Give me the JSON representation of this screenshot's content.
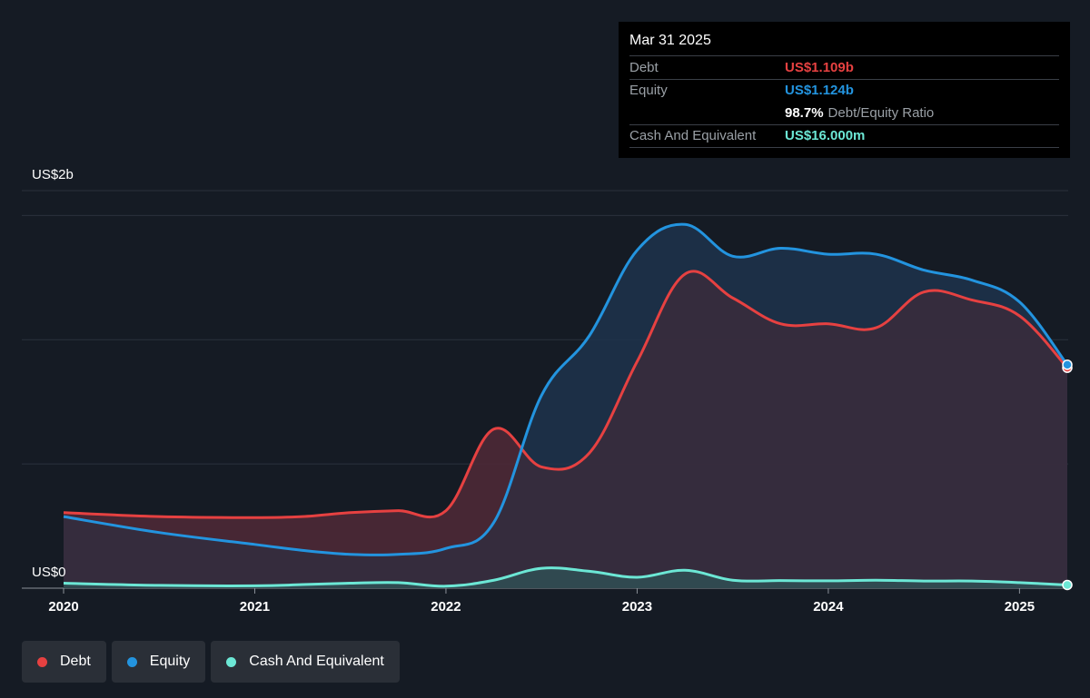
{
  "tooltip": {
    "date": "Mar 31 2025",
    "rows": [
      {
        "label": "Debt",
        "value": "US$1.109b",
        "color": "#e64141"
      },
      {
        "label": "Equity",
        "value": "US$1.124b",
        "color": "#2394df"
      },
      {
        "label": "Cash And Equivalent",
        "value": "US$16.000m",
        "color": "#6ce7d5"
      }
    ],
    "ratio_value": "98.7%",
    "ratio_label": "Debt/Equity Ratio"
  },
  "chart_data": {
    "type": "area",
    "y_top_label": "US$2b",
    "y_bottom_label": "US$0",
    "ylim": [
      0,
      2.0
    ],
    "xlim": [
      2020.0,
      2025.25
    ],
    "x_ticks": [
      "2020",
      "2021",
      "2022",
      "2023",
      "2024",
      "2025"
    ],
    "grid": true,
    "series": [
      {
        "name": "Debt",
        "color": "#e64141",
        "x": [
          2020.0,
          2020.5,
          2021.0,
          2021.25,
          2021.5,
          2021.75,
          2022.0,
          2022.25,
          2022.5,
          2022.75,
          2023.0,
          2023.25,
          2023.5,
          2023.75,
          2024.0,
          2024.25,
          2024.5,
          2024.75,
          2025.0,
          2025.25
        ],
        "values": [
          0.38,
          0.36,
          0.355,
          0.36,
          0.38,
          0.39,
          0.39,
          0.8,
          0.61,
          0.68,
          1.14,
          1.58,
          1.46,
          1.33,
          1.33,
          1.31,
          1.49,
          1.45,
          1.37,
          1.109
        ]
      },
      {
        "name": "Equity",
        "color": "#2394df",
        "x": [
          2020.0,
          2020.5,
          2021.0,
          2021.25,
          2021.5,
          2021.75,
          2022.0,
          2022.25,
          2022.5,
          2022.75,
          2023.0,
          2023.25,
          2023.5,
          2023.75,
          2024.0,
          2024.25,
          2024.5,
          2024.75,
          2025.0,
          2025.25
        ],
        "values": [
          0.36,
          0.28,
          0.22,
          0.19,
          0.17,
          0.17,
          0.2,
          0.33,
          0.97,
          1.27,
          1.7,
          1.83,
          1.67,
          1.71,
          1.68,
          1.68,
          1.6,
          1.55,
          1.44,
          1.124
        ]
      },
      {
        "name": "Cash And Equivalent",
        "color": "#6ce7d5",
        "x": [
          2020.0,
          2020.5,
          2021.0,
          2021.25,
          2021.5,
          2021.75,
          2022.0,
          2022.25,
          2022.5,
          2022.75,
          2023.0,
          2023.25,
          2023.5,
          2023.75,
          2024.0,
          2024.25,
          2024.5,
          2024.75,
          2025.0,
          2025.25
        ],
        "values": [
          0.025,
          0.014,
          0.012,
          0.018,
          0.025,
          0.028,
          0.01,
          0.04,
          0.1,
          0.085,
          0.055,
          0.09,
          0.04,
          0.038,
          0.037,
          0.04,
          0.036,
          0.036,
          0.028,
          0.016
        ]
      }
    ]
  },
  "legend": [
    {
      "label": "Debt",
      "color": "#e64141"
    },
    {
      "label": "Equity",
      "color": "#2394df"
    },
    {
      "label": "Cash And Equivalent",
      "color": "#6ce7d5"
    }
  ]
}
